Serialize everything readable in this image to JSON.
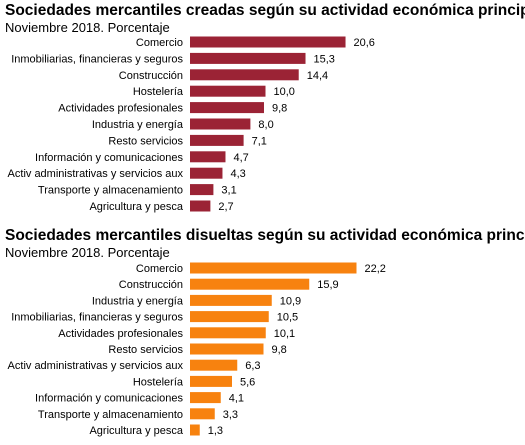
{
  "chart_data": [
    {
      "type": "bar",
      "orientation": "horizontal",
      "title": "Sociedades mercantiles creadas según su actividad económica principal",
      "subtitle": "Noviembre 2018. Porcentaje",
      "color": "#9b2335",
      "categories": [
        "Comercio",
        "Inmobiliarias, financieras y seguros",
        "Construcción",
        "Hostelería",
        "Actividades profesionales",
        "Industria y energía",
        "Resto servicios",
        "Información y comunicaciones",
        "Activ administrativas y servicios aux",
        "Transporte y almacenamiento",
        "Agricultura y pesca"
      ],
      "values": [
        20.6,
        15.3,
        14.4,
        10.0,
        9.8,
        8.0,
        7.1,
        4.7,
        4.3,
        3.1,
        2.7
      ],
      "value_labels": [
        "20,6",
        "15,3",
        "14,4",
        "10,0",
        "9,8",
        "8,0",
        "7,1",
        "4,7",
        "4,3",
        "3,1",
        "2,7"
      ]
    },
    {
      "type": "bar",
      "orientation": "horizontal",
      "title": "Sociedades mercantiles disueltas según su actividad económica principal",
      "subtitle": "Noviembre 2018. Porcentaje",
      "color": "#f7820f",
      "categories": [
        "Comercio",
        "Construcción",
        "Industria y energía",
        "Inmobiliarias, financieras y seguros",
        "Actividades profesionales",
        "Resto servicios",
        "Activ administrativas y servicios aux",
        "Hostelería",
        "Información y comunicaciones",
        "Transporte y almacenamiento",
        "Agricultura y pesca"
      ],
      "values": [
        22.2,
        15.9,
        10.9,
        10.5,
        10.1,
        9.8,
        6.3,
        5.6,
        4.1,
        3.3,
        1.3
      ],
      "value_labels": [
        "22,2",
        "15,9",
        "10,9",
        "10,5",
        "10,1",
        "9,8",
        "6,3",
        "5,6",
        "4,1",
        "3,3",
        "1,3"
      ]
    }
  ]
}
